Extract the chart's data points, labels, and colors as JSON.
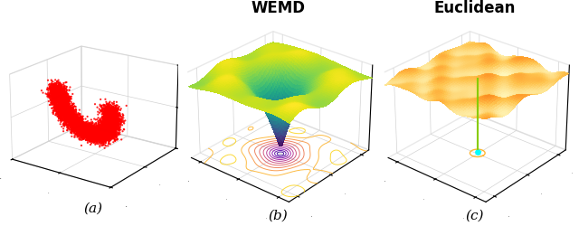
{
  "title_b": "WEMD",
  "title_c": "Euclidean",
  "label_a": "(a)",
  "label_b": "(b)",
  "label_c": "(c)",
  "title_fontsize": 12,
  "label_fontsize": 11,
  "background_color": "#ffffff"
}
